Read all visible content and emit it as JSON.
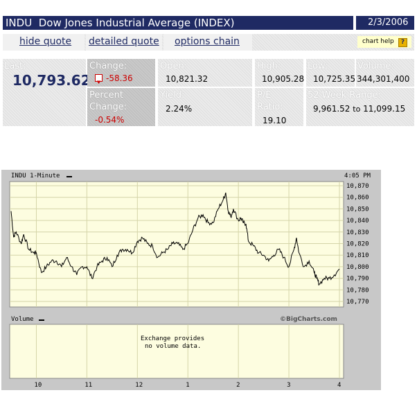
{
  "header": {
    "title": "INDU  Dow Jones Industrial Average (INDEX)",
    "date": "2/3/2006"
  },
  "links": {
    "hide_quote": "hide quote",
    "detailed_quote": "detailed quote",
    "options_chain": "options chain",
    "chart_help": "chart help",
    "chart_help_icon": "?"
  },
  "quote": {
    "last_label": "Last:",
    "last_value": "10,793.62",
    "change_label": "Change:",
    "change_value": "-58.36",
    "change_icon": "down-arrow-icon",
    "percent_change_label": "Percent Change:",
    "percent_change_value": "-0.54%",
    "open_label": "Open:",
    "open_value": "10,821.32",
    "yield_label": "Yield:",
    "yield_value": "2.24%",
    "high_label": "High:",
    "high_value": "10,905.28",
    "pe_label": "P/E Ratio:",
    "pe_value": "19.10",
    "low_label": "Low:",
    "low_value": "10,725.35",
    "volume_label": "Volume:",
    "volume_value": "344,301,400",
    "range_label": "52 Week Range:",
    "range_low": "9,961.52",
    "range_to": "to",
    "range_high": "11,099.15"
  },
  "chart": {
    "symbol_label": "INDU 1-Minute",
    "time": "4:05 PM",
    "volume_label": "Volume",
    "copyright": "©BigCharts.com",
    "no_volume_line1": "Exchange provides",
    "no_volume_line2": "no volume data."
  },
  "colors": {
    "header_bg": "#1f2a63",
    "chart_bg": "#fdfde0",
    "negative": "#cc0000",
    "line": "#000000"
  },
  "chart_data": {
    "type": "line",
    "title": "INDU 1-Minute",
    "x_ticks": [
      "10",
      "11",
      "12",
      "1",
      "2",
      "3",
      "4"
    ],
    "y_ticks": [
      10870,
      10860,
      10850,
      10840,
      10830,
      10820,
      10810,
      10800,
      10790,
      10780,
      10770
    ],
    "ylim": [
      10770,
      10870
    ],
    "xlim": [
      9.5,
      16.0
    ],
    "grid": true,
    "series": [
      {
        "x": [
          9.5,
          9.55,
          9.6,
          9.7,
          9.75,
          9.85,
          9.95,
          10.0,
          10.1,
          10.2,
          10.3,
          10.4,
          10.5,
          10.6,
          10.7,
          10.8,
          10.9,
          11.0,
          11.1,
          11.2,
          11.3,
          11.4,
          11.5,
          11.6,
          11.7,
          11.8,
          11.9,
          12.0,
          12.1,
          12.2,
          12.3,
          12.4,
          12.5,
          12.6,
          12.7,
          12.8,
          12.9,
          13.0,
          13.1,
          13.2,
          13.3,
          13.4,
          13.5,
          13.6,
          13.7,
          13.75,
          13.8,
          13.85,
          13.9,
          14.0,
          14.05,
          14.1,
          14.15,
          14.2,
          14.3,
          14.4,
          14.5,
          14.6,
          14.7,
          14.8,
          14.9,
          15.0,
          15.1,
          15.15,
          15.2,
          15.3,
          15.4,
          15.5,
          15.55,
          15.6,
          15.7,
          15.8,
          15.9,
          16.0
        ],
        "values": [
          10848,
          10826,
          10830,
          10820,
          10828,
          10815,
          10812,
          10812,
          10795,
          10800,
          10805,
          10805,
          10800,
          10808,
          10800,
          10793,
          10800,
          10800,
          10790,
          10800,
          10805,
          10808,
          10800,
          10810,
          10815,
          10815,
          10812,
          10822,
          10825,
          10820,
          10818,
          10808,
          10812,
          10815,
          10820,
          10820,
          10815,
          10820,
          10832,
          10842,
          10845,
          10838,
          10838,
          10850,
          10858,
          10864,
          10848,
          10843,
          10850,
          10840,
          10842,
          10838,
          10837,
          10822,
          10818,
          10812,
          10810,
          10805,
          10810,
          10815,
          10808,
          10800,
          10815,
          10825,
          10812,
          10800,
          10805,
          10795,
          10790,
          10785,
          10790,
          10790,
          10793,
          10798
        ]
      }
    ]
  }
}
